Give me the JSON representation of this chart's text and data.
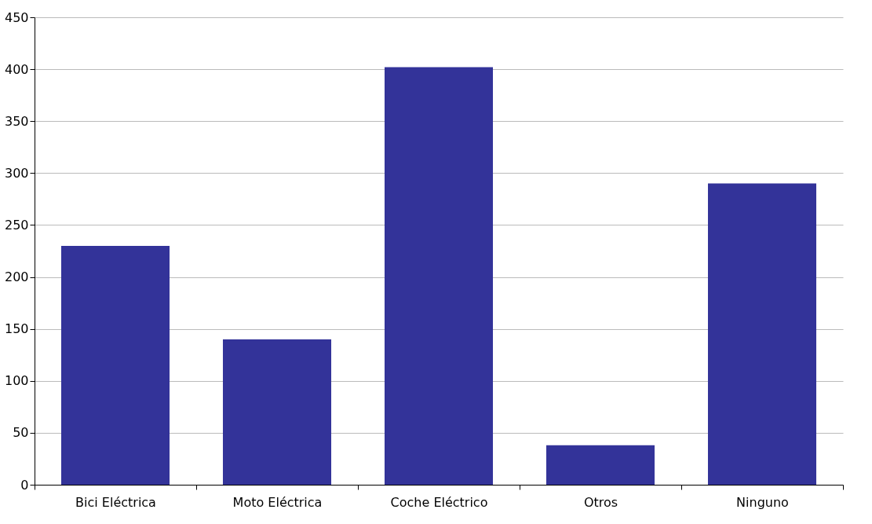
{
  "chart_data": {
    "type": "bar",
    "categories": [
      "Bici Eléctrica",
      "Moto Eléctrica",
      "Coche Eléctrico",
      "Otros",
      "Ninguno"
    ],
    "values": [
      230,
      140,
      402,
      38,
      290
    ],
    "color": "#333399",
    "ylim": [
      0,
      450
    ],
    "yticks": [
      0,
      50,
      100,
      150,
      200,
      250,
      300,
      350,
      400,
      450
    ],
    "grid": "y"
  }
}
